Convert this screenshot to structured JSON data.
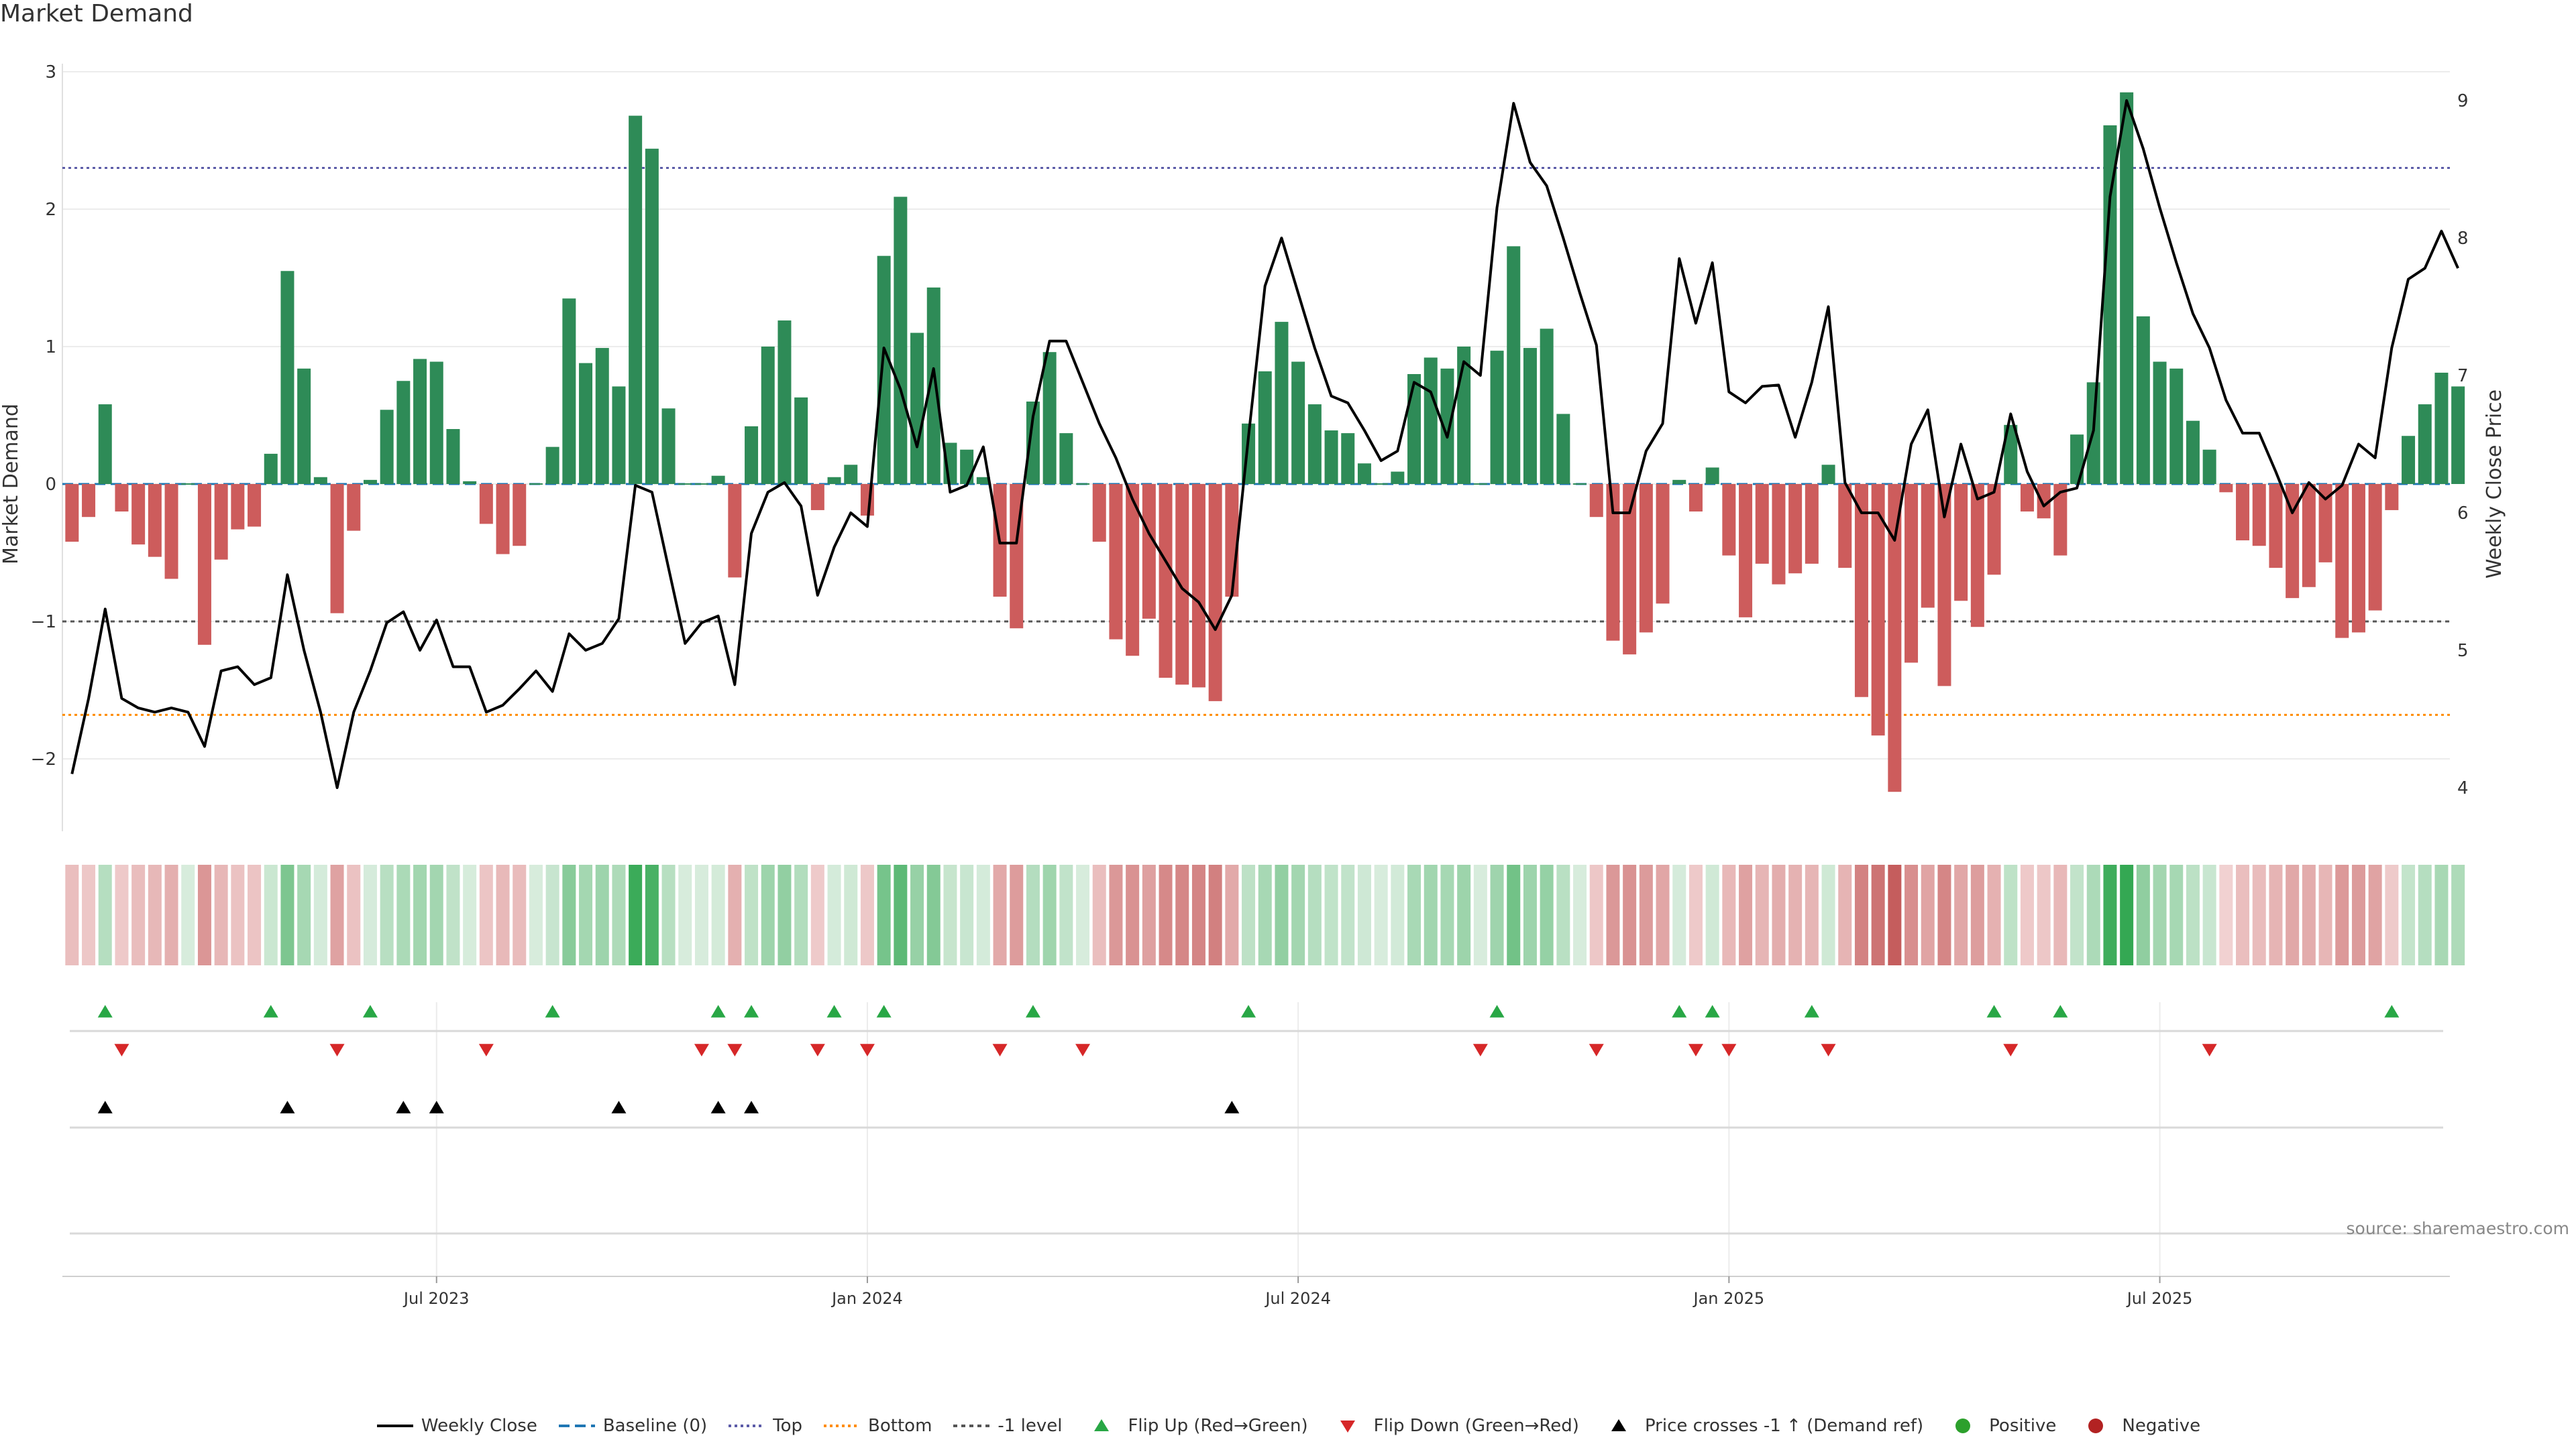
{
  "title": "Market Demand",
  "source": "source: sharemaestro.com",
  "colors": {
    "positive": "#2e8b57",
    "negative": "#cd5c5c",
    "price": "#000000",
    "baseline": "#1f77b4",
    "top": "#5c5ca8",
    "bottom": "#ff8c00",
    "minus_one": "#555555",
    "flip_up": "#28a745",
    "flip_down": "#d62728",
    "price_cross": "#000000",
    "positive_dot": "#2ca02c",
    "negative_dot": "#b22222"
  },
  "chart_data": {
    "type": "bar",
    "title": "Market Demand",
    "ylabel_left": "Market Demand",
    "ylabel_right": "Weekly Close Price",
    "ylim_left": [
      -2.5,
      3.0
    ],
    "ylim_right": [
      3.8,
      9.4
    ],
    "left_ticks": [
      "3",
      "2",
      "1",
      "0",
      "−1",
      "−2"
    ],
    "left_tick_values": [
      3,
      2,
      1,
      0,
      -1,
      -2
    ],
    "right_ticks": [
      "9",
      "8",
      "7",
      "6",
      "5",
      "4"
    ],
    "right_tick_values": [
      9,
      8,
      7,
      6,
      5,
      4
    ],
    "x_ticks": [
      "Jul 2023",
      "Jan 2024",
      "Jul 2024",
      "Jan 2025",
      "Jul 2025"
    ],
    "x_tick_weeks": [
      22,
      48,
      74,
      100,
      126
    ],
    "reference_lines": {
      "baseline": 0,
      "top": 2.3,
      "bottom": -1.68,
      "minus_one": -1
    },
    "weeks": 144,
    "demand": [
      -0.42,
      -0.24,
      0.58,
      -0.2,
      -0.44,
      -0.53,
      -0.69,
      0,
      -1.17,
      -0.55,
      -0.33,
      -0.31,
      0.22,
      1.55,
      0.84,
      0.05,
      -0.94,
      -0.34,
      0.03,
      0.54,
      0.75,
      0.91,
      0.89,
      0.4,
      0.02,
      -0.29,
      -0.51,
      -0.45,
      0,
      0.27,
      1.35,
      0.88,
      0.99,
      0.71,
      2.68,
      2.44,
      0.55,
      0,
      0,
      0.06,
      -0.68,
      0.42,
      1.0,
      1.19,
      0.63,
      -0.19,
      0.05,
      0.14,
      -0.23,
      1.66,
      2.09,
      1.1,
      1.43,
      0.3,
      0.25,
      0.05,
      -0.82,
      -1.05,
      0.6,
      0.96,
      0.37,
      0,
      -0.42,
      -1.13,
      -1.25,
      -0.98,
      -1.41,
      -1.46,
      -1.48,
      -1.58,
      -0.82,
      0.44,
      0.82,
      1.18,
      0.89,
      0.58,
      0.39,
      0.37,
      0.15,
      0,
      0.09,
      0.8,
      0.92,
      0.84,
      1.0,
      0,
      0.97,
      1.73,
      0.99,
      1.13,
      0.51,
      0,
      -0.24,
      -1.14,
      -1.24,
      -1.08,
      -0.87,
      0.03,
      -0.2,
      0.12,
      -0.52,
      -0.97,
      -0.58,
      -0.73,
      -0.65,
      -0.58,
      0.14,
      -0.61,
      -1.55,
      -1.83,
      -2.24,
      -1.3,
      -0.9,
      -1.47,
      -0.85,
      -1.04,
      -0.66,
      0.43,
      -0.2,
      -0.25,
      -0.52,
      0.36,
      0.74,
      2.61,
      2.85,
      1.22,
      0.89,
      0.84,
      0.46,
      0.25,
      -0.06,
      -0.41,
      -0.45,
      -0.61,
      -0.83,
      -0.75,
      -0.57,
      -1.12,
      -1.08,
      -0.92,
      -0.19,
      0.35,
      0.58,
      0.81,
      0.71
    ],
    "price": [
      4.1,
      4.65,
      5.3,
      4.65,
      4.58,
      4.55,
      4.58,
      4.55,
      4.3,
      4.85,
      4.88,
      4.75,
      4.8,
      5.55,
      5.0,
      4.55,
      4.0,
      4.55,
      4.85,
      5.2,
      5.28,
      5.0,
      5.22,
      4.88,
      4.88,
      4.55,
      4.6,
      4.72,
      4.85,
      4.7,
      5.12,
      5.0,
      5.05,
      5.23,
      6.2,
      6.15,
      5.6,
      5.05,
      5.2,
      5.25,
      4.75,
      5.85,
      6.15,
      6.22,
      6.05,
      5.4,
      5.75,
      6.0,
      5.9,
      7.2,
      6.9,
      6.48,
      7.05,
      6.15,
      6.2,
      6.48,
      5.78,
      5.78,
      6.7,
      7.25,
      7.25,
      6.95,
      6.65,
      6.4,
      6.1,
      5.85,
      5.65,
      5.45,
      5.35,
      5.15,
      5.4,
      6.55,
      7.65,
      8.0,
      7.6,
      7.2,
      6.85,
      6.8,
      6.6,
      6.38,
      6.45,
      6.95,
      6.88,
      6.55,
      7.1,
      7.0,
      8.22,
      8.98,
      8.55,
      8.38,
      8.0,
      7.6,
      7.22,
      6.0,
      6.0,
      6.45,
      6.65,
      7.85,
      7.38,
      7.82,
      6.88,
      6.8,
      6.92,
      6.93,
      6.55,
      6.95,
      7.5,
      6.22,
      6.0,
      6.0,
      5.8,
      6.5,
      6.75,
      5.97,
      6.5,
      6.1,
      6.15,
      6.72,
      6.3,
      6.05,
      6.15,
      6.18,
      6.6,
      8.3,
      9.0,
      8.65,
      8.22,
      7.82,
      7.45,
      7.2,
      6.82,
      6.58,
      6.58,
      6.3,
      6.0,
      6.22,
      6.1,
      6.2,
      6.5,
      6.4,
      7.2,
      7.7,
      7.78,
      8.05,
      7.78
    ],
    "flip_up_weeks": [
      2,
      12,
      18,
      29,
      39,
      41,
      46,
      49,
      58,
      71,
      86,
      97,
      99,
      105,
      116,
      120,
      140
    ],
    "flip_down_weeks": [
      3,
      16,
      25,
      38,
      40,
      45,
      48,
      56,
      61,
      85,
      92,
      98,
      100,
      106,
      117,
      129
    ],
    "price_cross_weeks": [
      2,
      13,
      20,
      22,
      33,
      39,
      41,
      70
    ]
  },
  "legend": [
    {
      "label": "Weekly Close",
      "icon": "solid-line"
    },
    {
      "label": "Baseline (0)",
      "icon": "dashed-line"
    },
    {
      "label": "Top",
      "icon": "dotted-line"
    },
    {
      "label": "Bottom",
      "icon": "dotted-line"
    },
    {
      "label": "-1 level",
      "icon": "dashed-line"
    },
    {
      "label": "Flip Up (Red→Green)",
      "icon": "triangle-up"
    },
    {
      "label": "Flip Down (Green→Red)",
      "icon": "triangle-down"
    },
    {
      "label": "Price crosses -1 ↑ (Demand ref)",
      "icon": "triangle-up"
    },
    {
      "label": "Positive",
      "icon": "circle"
    },
    {
      "label": "Negative",
      "icon": "circle"
    }
  ]
}
